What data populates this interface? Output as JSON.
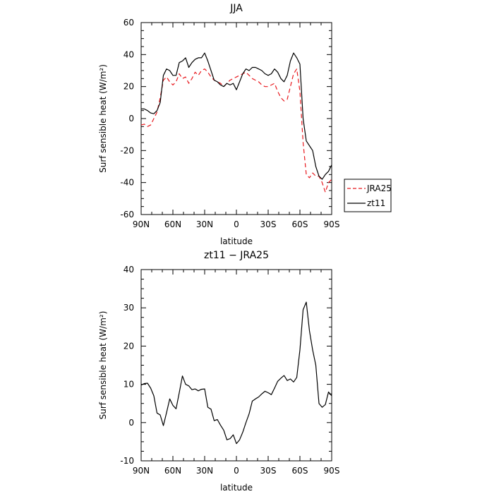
{
  "chart_data": [
    {
      "type": "line",
      "title": "JJA",
      "xlabel": "latitude",
      "ylabel": "Surf sensible heat (W/m²)",
      "xlim": [
        90,
        -90
      ],
      "ylim": [
        -60,
        60
      ],
      "xticks": [
        {
          "value": 90,
          "label": "90N"
        },
        {
          "value": 60,
          "label": "60N"
        },
        {
          "value": 30,
          "label": "30N"
        },
        {
          "value": 0,
          "label": "0"
        },
        {
          "value": -30,
          "label": "30S"
        },
        {
          "value": -60,
          "label": "60S"
        },
        {
          "value": -90,
          "label": "90S"
        }
      ],
      "yticks": [
        60,
        40,
        20,
        0,
        -20,
        -40,
        -60
      ],
      "grid": false,
      "legend_position": "lower-right-outside",
      "series": [
        {
          "name": "JRA25",
          "color": "#e8191e",
          "dash": "dashed",
          "x": [
            90,
            87,
            84,
            81,
            78,
            75,
            72,
            69,
            66,
            63,
            60,
            57,
            54,
            51,
            48,
            45,
            42,
            39,
            36,
            33,
            30,
            27,
            24,
            21,
            18,
            15,
            12,
            9,
            6,
            3,
            0,
            -3,
            -6,
            -9,
            -12,
            -15,
            -18,
            -21,
            -24,
            -27,
            -30,
            -33,
            -36,
            -39,
            -42,
            -45,
            -48,
            -51,
            -54,
            -57,
            -60,
            -63,
            -66,
            -69,
            -72,
            -75,
            -78,
            -81,
            -84,
            -87,
            -90
          ],
          "y": [
            -4,
            -3.5,
            -5,
            -4,
            0,
            4,
            13,
            24,
            26,
            23,
            21,
            23,
            28,
            25,
            26,
            22,
            25,
            29,
            27,
            30,
            31,
            29,
            26,
            24,
            23,
            22,
            20,
            22,
            24,
            25,
            26,
            27,
            28,
            29,
            27,
            25,
            24,
            23,
            21,
            20,
            20,
            21,
            22,
            17,
            13,
            11,
            12,
            20,
            28,
            31,
            17,
            -15,
            -35,
            -37,
            -34,
            -36,
            -36,
            -40,
            -46,
            -40,
            -38
          ]
        },
        {
          "name": "zt11",
          "color": "#000000",
          "dash": "solid",
          "x": [
            90,
            87,
            84,
            81,
            78,
            75,
            72,
            69,
            66,
            63,
            60,
            57,
            54,
            51,
            48,
            45,
            42,
            39,
            36,
            33,
            30,
            27,
            24,
            21,
            18,
            15,
            12,
            9,
            6,
            3,
            0,
            -3,
            -6,
            -9,
            -12,
            -15,
            -18,
            -21,
            -24,
            -27,
            -30,
            -33,
            -36,
            -39,
            -42,
            -45,
            -48,
            -51,
            -54,
            -57,
            -60,
            -63,
            -66,
            -69,
            -72,
            -75,
            -78,
            -81,
            -84,
            -87,
            -90
          ],
          "y": [
            6,
            6,
            5,
            3.5,
            3,
            5,
            10,
            27,
            31,
            30,
            27,
            27,
            35,
            36,
            38,
            32,
            35,
            37,
            38,
            38,
            41,
            36,
            30,
            24,
            23,
            21,
            20,
            22,
            21,
            22,
            18,
            23,
            28,
            31,
            30,
            32,
            32,
            31,
            30,
            28,
            27,
            28,
            31,
            29,
            25,
            23,
            27,
            36,
            41,
            38,
            34,
            0,
            -14,
            -17,
            -20,
            -30,
            -36,
            -38,
            -35,
            -33,
            -29
          ]
        }
      ]
    },
    {
      "type": "line",
      "title": "zt11 − JRA25",
      "xlabel": "latitude",
      "ylabel": "Surf sensible heat (W/m²)",
      "xlim": [
        90,
        -90
      ],
      "ylim": [
        -10,
        40
      ],
      "xticks": [
        {
          "value": 90,
          "label": "90N"
        },
        {
          "value": 60,
          "label": "60N"
        },
        {
          "value": 30,
          "label": "30N"
        },
        {
          "value": 0,
          "label": "0"
        },
        {
          "value": -30,
          "label": "30S"
        },
        {
          "value": -60,
          "label": "60S"
        },
        {
          "value": -90,
          "label": "90S"
        }
      ],
      "yticks": [
        40,
        30,
        20,
        10,
        0,
        -10
      ],
      "grid": false,
      "series": [
        {
          "color": "#000000",
          "dash": "solid",
          "x": [
            90,
            87,
            84,
            81,
            78,
            75,
            72,
            69,
            66,
            63,
            60,
            57,
            54,
            51,
            48,
            45,
            42,
            39,
            36,
            33,
            30,
            27,
            24,
            21,
            18,
            15,
            12,
            9,
            6,
            3,
            0,
            -3,
            -6,
            -9,
            -12,
            -15,
            -18,
            -21,
            -24,
            -27,
            -30,
            -33,
            -36,
            -39,
            -42,
            -45,
            -48,
            -51,
            -54,
            -57,
            -60,
            -63,
            -66,
            -69,
            -72,
            -75,
            -78,
            -81,
            -84,
            -87,
            -90
          ],
          "y": [
            9.8,
            10.2,
            10.3,
            9,
            7,
            2.5,
            2,
            -0.8,
            2.6,
            6.2,
            4.5,
            3.6,
            7.8,
            12.2,
            10,
            9.6,
            8.6,
            8.8,
            8.3,
            8.7,
            8.8,
            4,
            3.5,
            0.5,
            0.8,
            -0.7,
            -2,
            -4.5,
            -4.2,
            -3.2,
            -5.5,
            -4.5,
            -2.5,
            0,
            2.3,
            5.6,
            6.2,
            6.7,
            7.5,
            8.2,
            7.8,
            7.3,
            9,
            10.8,
            11.6,
            12.3,
            11,
            11.4,
            10.6,
            11.8,
            19,
            29.5,
            31.5,
            24,
            19,
            15,
            5,
            4,
            4.7,
            8,
            7
          ]
        }
      ]
    }
  ]
}
